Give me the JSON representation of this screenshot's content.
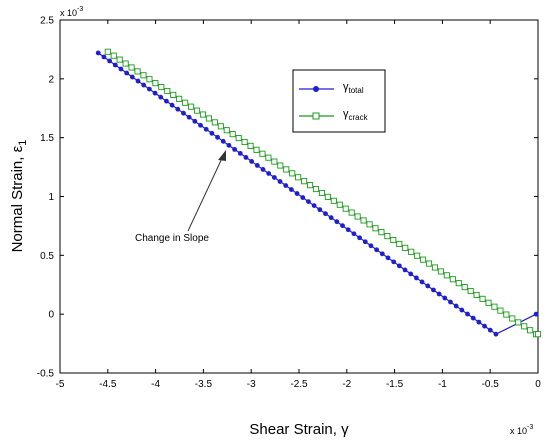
{
  "chart_data": {
    "type": "line",
    "xlabel": "Shear Strain, γ",
    "ylabel": "Normal Strain, ε",
    "ylabel_sub": "1",
    "x_exponent_label": "x 10",
    "y_exponent_label": "x 10",
    "exponent_power": "-3",
    "xlim": [
      -5,
      0
    ],
    "ylim": [
      -0.5,
      2.5
    ],
    "x_ticks": [
      "-5",
      "-4.5",
      "-4",
      "-3.5",
      "-3",
      "-2.5",
      "-2",
      "-1.5",
      "-1",
      "-0.5",
      "0"
    ],
    "y_ticks": [
      "-0.5",
      "0",
      "0.5",
      "1",
      "1.5",
      "2",
      "2.5"
    ],
    "grid": false,
    "legend_position": "top-right",
    "annotation": {
      "text": "Change in Slope",
      "x": -3.25,
      "y": 1.48
    },
    "series": [
      {
        "name": "γ",
        "name_sub": "total",
        "color": "#1f1fd0",
        "marker": "circle",
        "segments": [
          {
            "x0": -4.6,
            "y0": 2.22,
            "x1": -0.44,
            "y1": -0.17,
            "n": 70
          },
          {
            "x0": -0.44,
            "y0": -0.17,
            "x1": -0.02,
            "y1": 0.0,
            "n": 1
          }
        ]
      },
      {
        "name": "γ",
        "name_sub": "crack",
        "color": "#1a9a1a",
        "marker": "square",
        "segments": [
          {
            "x0": -4.5,
            "y0": 2.23,
            "x1": -0.02,
            "y1": -0.17,
            "n": 72
          },
          {
            "x0": 0.0,
            "y0": 0.0,
            "x1": 0.0,
            "y1": -0.17,
            "n": 1
          }
        ]
      }
    ]
  }
}
